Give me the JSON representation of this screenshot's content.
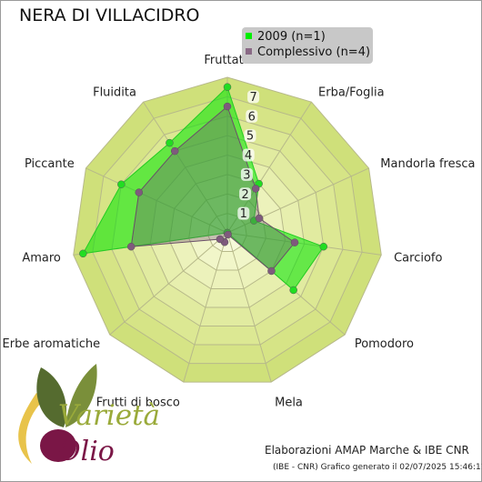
{
  "title": "NERA DI VILLACIDRO",
  "legend": [
    {
      "label": "2009 (n=1)",
      "color": "#00ee00"
    },
    {
      "label": "Complessivo (n=4)",
      "color": "#8a6a86"
    }
  ],
  "credits": {
    "main": "Elaborazioni AMAP Marche & IBE CNR",
    "sub": "(IBE - CNR) Grafico generato il 02/07/2025 15:46:11"
  },
  "logo": {
    "word1": "Varietà",
    "word2": "Olio"
  },
  "chart_data": {
    "type": "radar",
    "categories": [
      "Fruttato",
      "Erba/Foglia",
      "Mandorla fresca",
      "Carciofo",
      "Pomodoro",
      "Mela",
      "Frutti di bosco",
      "Erbe aromatiche",
      "Amaro",
      "Piccante",
      "Fluidita"
    ],
    "rmax": 8,
    "tick_labels": [
      "1",
      "2",
      "3",
      "4",
      "5",
      "6",
      "7"
    ],
    "series": [
      {
        "name": "2009 (n=1)",
        "color": "#00ee00",
        "values": [
          7.5,
          3.0,
          1.5,
          5.0,
          4.5,
          0.0,
          0.0,
          0.0,
          7.5,
          6.0,
          5.5
        ]
      },
      {
        "name": "Complessivo (n=4)",
        "color": "#7f5a7d",
        "values": [
          6.5,
          2.7,
          1.8,
          3.5,
          3.0,
          0.1,
          0.5,
          0.5,
          5.0,
          5.0,
          5.0
        ]
      }
    ]
  }
}
